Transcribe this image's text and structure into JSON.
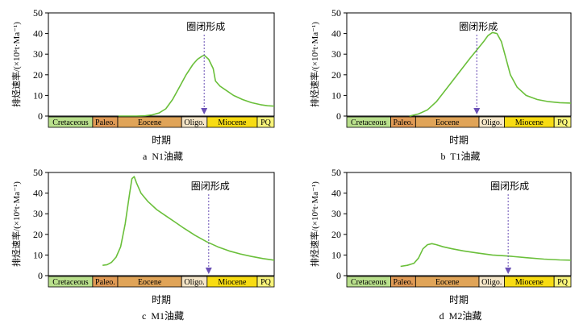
{
  "chart_data": [
    {
      "type": "line",
      "caption": "a  N1油藏",
      "xlabel": "时期",
      "ylabel": "排烃速率/(×10⁶t·Ma⁻¹)",
      "ylim": [
        0,
        50
      ],
      "yticks": [
        0,
        10,
        20,
        30,
        40,
        50
      ],
      "annotation": "圈闭形成",
      "periods": [
        "Cretaceous",
        "Paleo.",
        "Eocene",
        "Oligo.",
        "Miocene",
        "PQ"
      ],
      "trap_formation_t": 0.69,
      "series": [
        {
          "t": [
            0.31,
            0.39,
            0.43,
            0.46,
            0.49,
            0.52,
            0.55,
            0.58,
            0.61,
            0.64,
            0.66,
            0.68,
            0.69,
            0.71,
            0.73,
            0.74,
            0.76,
            0.78,
            0.82,
            0.86,
            0.9,
            0.94,
            0.97,
            1.0
          ],
          "values": [
            0,
            0,
            0.2,
            0.6,
            1.5,
            3.5,
            8,
            14,
            20,
            25,
            27.5,
            29,
            29.5,
            27.5,
            23,
            17,
            14.5,
            13,
            10,
            8,
            6.5,
            5.5,
            5,
            4.8
          ]
        }
      ]
    },
    {
      "type": "line",
      "caption": "b  T1油藏",
      "xlabel": "时期",
      "ylabel": "排烃速率/(×10⁶t·Ma⁻¹)",
      "ylim": [
        0,
        50
      ],
      "yticks": [
        0,
        10,
        20,
        30,
        40,
        50
      ],
      "annotation": "圈闭形成",
      "periods": [
        "Cretaceous",
        "Paleo.",
        "Eocene",
        "Oligo.",
        "Miocene",
        "PQ"
      ],
      "trap_formation_t": 0.58,
      "series": [
        {
          "t": [
            0.28,
            0.32,
            0.36,
            0.4,
            0.45,
            0.5,
            0.55,
            0.58,
            0.61,
            0.63,
            0.65,
            0.67,
            0.69,
            0.71,
            0.73,
            0.76,
            0.8,
            0.85,
            0.9,
            0.95,
            1.0
          ],
          "values": [
            0,
            1,
            3,
            7,
            14,
            21,
            28,
            32,
            36,
            39,
            40.5,
            40,
            36,
            28,
            20,
            14,
            10,
            8,
            7,
            6.5,
            6.3
          ]
        }
      ]
    },
    {
      "type": "line",
      "caption": "c  M1油藏",
      "xlabel": "时期",
      "ylabel": "排烃速率/(×10⁶t·Ma⁻¹)",
      "ylim": [
        0,
        50
      ],
      "yticks": [
        0,
        10,
        20,
        30,
        40,
        50
      ],
      "annotation": "圈闭形成",
      "periods": [
        "Cretaceous",
        "Paleo.",
        "Eocene",
        "Oligo.",
        "Miocene",
        "PQ"
      ],
      "trap_formation_t": 0.71,
      "series": [
        {
          "t": [
            0.24,
            0.26,
            0.28,
            0.3,
            0.32,
            0.34,
            0.36,
            0.37,
            0.38,
            0.39,
            0.41,
            0.44,
            0.48,
            0.52,
            0.56,
            0.6,
            0.65,
            0.7,
            0.75,
            0.8,
            0.85,
            0.9,
            0.95,
            1.0
          ],
          "values": [
            5,
            5.3,
            6.5,
            9,
            14,
            25,
            40,
            47,
            48,
            45,
            40,
            36,
            32,
            29,
            26,
            23,
            19.5,
            16.5,
            14,
            12,
            10.5,
            9.3,
            8.3,
            7.5
          ]
        }
      ]
    },
    {
      "type": "line",
      "caption": "d  M2油藏",
      "xlabel": "时期",
      "ylabel": "排烃速率/(×10⁶t·Ma⁻¹)",
      "ylim": [
        0,
        50
      ],
      "yticks": [
        0,
        10,
        20,
        30,
        40,
        50
      ],
      "annotation": "圈闭形成",
      "periods": [
        "Cretaceous",
        "Paleo.",
        "Eocene",
        "Oligo.",
        "Miocene",
        "PQ"
      ],
      "trap_formation_t": 0.72,
      "series": [
        {
          "t": [
            0.24,
            0.27,
            0.3,
            0.32,
            0.34,
            0.36,
            0.38,
            0.4,
            0.43,
            0.47,
            0.52,
            0.58,
            0.65,
            0.72,
            0.8,
            0.88,
            0.95,
            1.0
          ],
          "values": [
            4.5,
            5,
            6,
            8.5,
            13,
            15,
            15.5,
            15,
            14,
            13,
            12,
            11,
            10,
            9.5,
            8.7,
            8,
            7.6,
            7.5
          ]
        }
      ]
    }
  ],
  "colors": {
    "curve": "#6abf3a",
    "arrow": "#6a4fb5",
    "period_fills": [
      "#b9e08c",
      "#e09a55",
      "#e0a458",
      "#f5e6c8",
      "#f8dc12",
      "#f8f47a"
    ]
  }
}
